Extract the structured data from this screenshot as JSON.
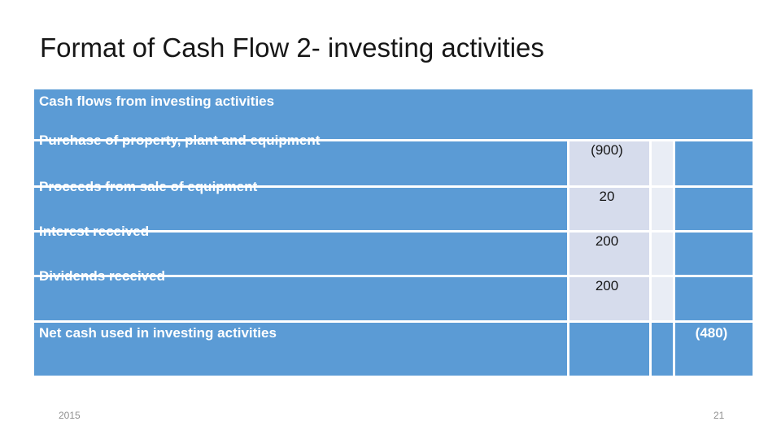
{
  "slide": {
    "title": "Format of Cash Flow 2- investing activities",
    "footer": {
      "year": "2015",
      "page_number": "21"
    }
  },
  "table": {
    "header": "Cash flows from investing activities",
    "rows": [
      {
        "label": "Purchase of property, plant and equipment",
        "value": "(900)"
      },
      {
        "label": "Proceeds from sale of equipment",
        "value": "20"
      },
      {
        "label": "Interest received",
        "value": "200"
      },
      {
        "label": "Dividends received",
        "value": "200"
      }
    ],
    "total_row": {
      "label": "Net cash used in investing activities",
      "value": "(480)"
    },
    "colors": {
      "table_blue": "#5b9bd5",
      "value_column_fill": "#d6dcec",
      "spacer_column_fill": "#e9edf5",
      "border": "#ffffff",
      "value_text": "#161616",
      "label_text": "#ffffff",
      "footer_text": "#909090"
    }
  }
}
